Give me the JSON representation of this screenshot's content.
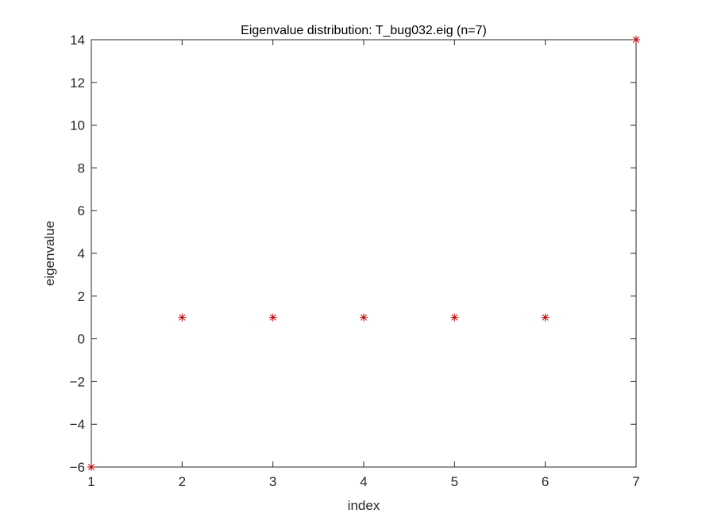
{
  "chart_data": {
    "type": "scatter",
    "title": "Eigenvalue distribution: T_bug032.eig (n=7)",
    "xlabel": "index",
    "ylabel": "eigenvalue",
    "xlim": [
      1,
      7
    ],
    "ylim": [
      -6,
      14
    ],
    "xticks": [
      "1",
      "2",
      "3",
      "4",
      "5",
      "6",
      "7"
    ],
    "yticks": [
      "−6",
      "−4",
      "−2",
      "0",
      "2",
      "4",
      "6",
      "8",
      "10",
      "12",
      "14"
    ],
    "grid": false,
    "marker": "asterisk",
    "marker_color": "#c00000",
    "series": [
      {
        "x": [
          1,
          2,
          3,
          4,
          5,
          6,
          7
        ],
        "y": [
          -6,
          1,
          1,
          1,
          1,
          1,
          14
        ]
      }
    ]
  }
}
